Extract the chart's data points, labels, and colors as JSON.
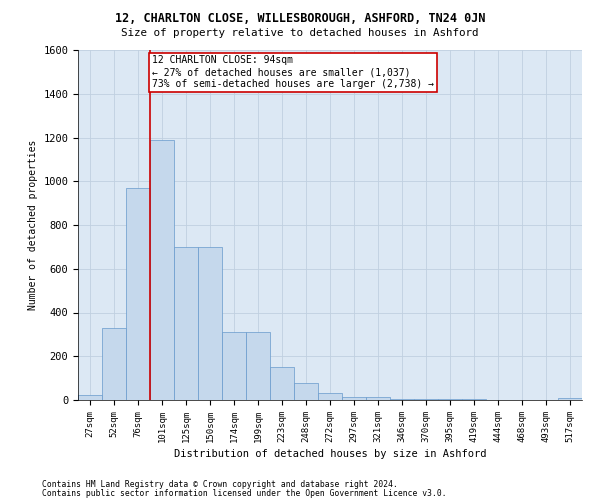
{
  "title1": "12, CHARLTON CLOSE, WILLESBOROUGH, ASHFORD, TN24 0JN",
  "title2": "Size of property relative to detached houses in Ashford",
  "xlabel": "Distribution of detached houses by size in Ashford",
  "ylabel": "Number of detached properties",
  "bar_labels": [
    "27sqm",
    "52sqm",
    "76sqm",
    "101sqm",
    "125sqm",
    "150sqm",
    "174sqm",
    "199sqm",
    "223sqm",
    "248sqm",
    "272sqm",
    "297sqm",
    "321sqm",
    "346sqm",
    "370sqm",
    "395sqm",
    "419sqm",
    "444sqm",
    "468sqm",
    "493sqm",
    "517sqm"
  ],
  "bar_values": [
    25,
    330,
    970,
    1190,
    700,
    700,
    310,
    310,
    150,
    80,
    30,
    15,
    15,
    5,
    5,
    5,
    5,
    0,
    0,
    0,
    10
  ],
  "bar_color": "#c5d8ec",
  "bar_edge_color": "#6699cc",
  "vline_color": "#cc0000",
  "annotation_text": "12 CHARLTON CLOSE: 94sqm\n← 27% of detached houses are smaller (1,037)\n73% of semi-detached houses are larger (2,738) →",
  "annotation_box_color": "#ffffff",
  "annotation_box_edge": "#cc0000",
  "ylim": [
    0,
    1600
  ],
  "yticks": [
    0,
    200,
    400,
    600,
    800,
    1000,
    1200,
    1400,
    1600
  ],
  "grid_color": "#c0d0e0",
  "bg_color": "#dce8f4",
  "footer1": "Contains HM Land Registry data © Crown copyright and database right 2024.",
  "footer2": "Contains public sector information licensed under the Open Government Licence v3.0."
}
